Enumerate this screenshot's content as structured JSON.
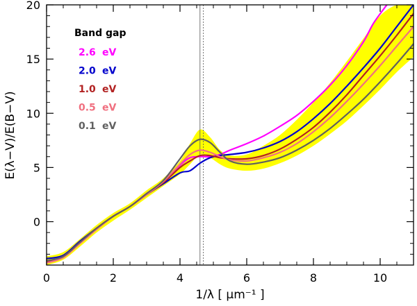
{
  "chart_data": {
    "type": "line",
    "title": "",
    "xlabel": "1/λ [ μm⁻¹ ]",
    "ylabel": "E(λ−V)/E(B−V)",
    "xlim": [
      0,
      11
    ],
    "ylim": [
      -4,
      20
    ],
    "xticks": [
      0,
      2,
      4,
      6,
      8,
      10
    ],
    "yticks": [
      0,
      5,
      10,
      15,
      20
    ],
    "grid": false,
    "legend": {
      "title": "Band gap",
      "placement": "top-left"
    },
    "vertical_lines": [
      {
        "x": 4.6,
        "style": "solid"
      },
      {
        "x": 4.7,
        "style": "dashed"
      }
    ],
    "band": {
      "color": "#ffff00",
      "x": [
        0,
        0.5,
        1,
        1.5,
        2,
        2.5,
        3,
        3.5,
        4,
        4.3,
        4.6,
        4.9,
        5.2,
        5.5,
        6,
        6.5,
        7,
        7.5,
        8,
        8.5,
        9,
        9.5,
        10,
        10.5,
        11
      ],
      "lower": [
        -4,
        -3.5,
        -2.3,
        -1.0,
        0.1,
        1.1,
        2.2,
        3.3,
        4.4,
        5.3,
        6.2,
        5.9,
        5.3,
        4.9,
        4.7,
        4.9,
        5.4,
        6.1,
        7.0,
        8.1,
        9.3,
        10.7,
        12.2,
        13.8,
        15.2
      ],
      "upper": [
        -3.2,
        -2.8,
        -1.6,
        -0.3,
        0.8,
        1.7,
        2.9,
        4.0,
        5.6,
        7.2,
        8.5,
        7.8,
        6.6,
        6.1,
        6.2,
        7.0,
        8.0,
        9.4,
        11.0,
        12.8,
        14.8,
        16.9,
        19.0,
        20.0,
        20.0
      ]
    },
    "series": [
      {
        "name": "2.6",
        "color": "#ff00ff",
        "x": [
          0,
          0.5,
          1,
          1.5,
          2,
          2.5,
          3,
          3.5,
          4,
          4.3,
          4.6,
          4.9,
          5.2,
          5.5,
          6,
          6.5,
          7,
          7.5,
          8,
          8.5,
          9,
          9.5,
          9.8,
          10.2
        ],
        "y": [
          -3.8,
          -3.3,
          -2.0,
          -0.7,
          0.5,
          1.4,
          2.6,
          3.7,
          5.2,
          5.9,
          6.0,
          6.0,
          6.2,
          6.6,
          7.2,
          7.9,
          8.8,
          9.8,
          11.1,
          12.6,
          14.4,
          16.6,
          18.3,
          20.0
        ]
      },
      {
        "name": "2.0",
        "color": "#0000cc",
        "x": [
          0,
          0.5,
          1,
          1.5,
          2,
          2.5,
          3,
          3.5,
          4,
          4.3,
          4.6,
          4.9,
          5.2,
          5.5,
          6,
          6.5,
          7,
          7.5,
          8,
          8.5,
          9,
          9.5,
          10,
          10.5,
          11
        ],
        "y": [
          -3.4,
          -3.1,
          -1.8,
          -0.6,
          0.5,
          1.4,
          2.5,
          3.5,
          4.5,
          4.7,
          5.4,
          5.9,
          6.1,
          6.2,
          6.4,
          6.8,
          7.4,
          8.3,
          9.5,
          10.9,
          12.5,
          14.2,
          16.0,
          18.0,
          20.0
        ]
      },
      {
        "name": "1.0",
        "color": "#b22222",
        "x": [
          0,
          0.5,
          1,
          1.5,
          2,
          2.5,
          3,
          3.5,
          4,
          4.3,
          4.6,
          4.9,
          5.2,
          5.5,
          6,
          6.5,
          7,
          7.5,
          8,
          8.5,
          9,
          9.5,
          10,
          10.5,
          11
        ],
        "y": [
          -3.7,
          -3.2,
          -1.9,
          -0.6,
          0.5,
          1.4,
          2.5,
          3.6,
          5.0,
          5.6,
          6.1,
          6.1,
          5.9,
          5.8,
          5.8,
          6.1,
          6.7,
          7.6,
          8.7,
          10.1,
          11.7,
          13.5,
          15.3,
          17.2,
          19.2
        ]
      },
      {
        "name": "0.5",
        "color": "#f07080",
        "x": [
          0,
          0.5,
          1,
          1.5,
          2,
          2.5,
          3,
          3.5,
          4,
          4.3,
          4.6,
          4.9,
          5.2,
          5.5,
          6,
          6.5,
          7,
          7.5,
          8,
          8.5,
          9,
          9.5,
          10,
          10.5,
          11
        ],
        "y": [
          -3.8,
          -3.3,
          -2.0,
          -0.7,
          0.5,
          1.4,
          2.5,
          3.7,
          5.3,
          6.2,
          6.6,
          6.4,
          6.0,
          5.7,
          5.6,
          5.9,
          6.4,
          7.2,
          8.3,
          9.6,
          11.1,
          12.7,
          14.4,
          16.2,
          18.0
        ]
      },
      {
        "name": "0.1",
        "color": "#606060",
        "x": [
          0,
          0.5,
          1,
          1.5,
          2,
          2.5,
          3,
          3.5,
          4,
          4.3,
          4.6,
          4.9,
          5.2,
          5.5,
          6,
          6.5,
          7,
          7.5,
          8,
          8.5,
          9,
          9.5,
          10,
          10.5,
          11
        ],
        "y": [
          -3.6,
          -3.2,
          -1.9,
          -0.6,
          0.5,
          1.4,
          2.6,
          3.8,
          5.8,
          7.0,
          7.6,
          7.3,
          6.4,
          5.6,
          5.3,
          5.5,
          5.9,
          6.6,
          7.5,
          8.6,
          9.9,
          11.3,
          12.9,
          14.6,
          16.4
        ]
      }
    ],
    "legend_unit": "eV"
  }
}
